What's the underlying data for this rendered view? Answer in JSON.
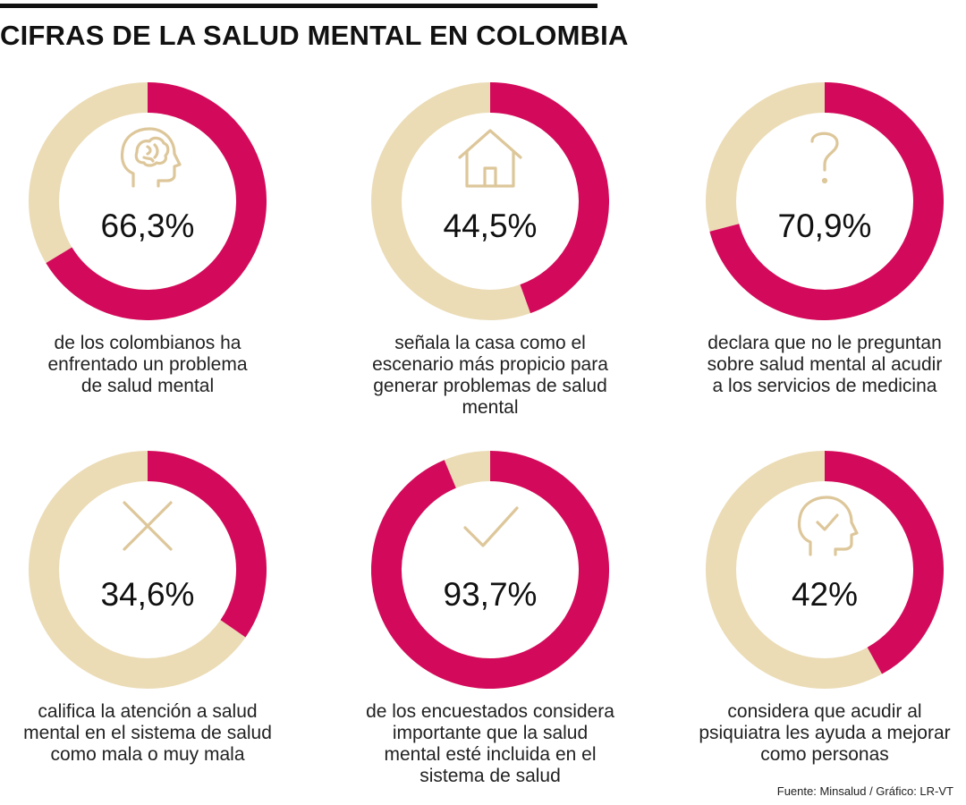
{
  "title": "CIFRAS DE LA SALUD MENTAL EN COLOMBIA",
  "colors": {
    "accent": "#d30a5c",
    "remainder": "#ebdcb6",
    "icon": "#ddc79a"
  },
  "chart_data": [
    {
      "type": "pie",
      "value": 66.3,
      "label": "66,3%",
      "icon": "head-brain-icon",
      "description": [
        "de los colombianos ha",
        "enfrentado un problema",
        "de salud mental"
      ]
    },
    {
      "type": "pie",
      "value": 44.5,
      "label": "44,5%",
      "icon": "house-icon",
      "description": [
        "señala la casa como el",
        "escenario más propicio para",
        "generar problemas de salud",
        "mental"
      ]
    },
    {
      "type": "pie",
      "value": 70.9,
      "label": "70,9%",
      "icon": "question-mark-icon",
      "description": [
        "declara que no le preguntan",
        "sobre salud mental al acudir",
        "a los servicios de medicina"
      ]
    },
    {
      "type": "pie",
      "value": 34.6,
      "label": "34,6%",
      "icon": "x-mark-icon",
      "description": [
        "califica la atención a salud",
        "mental en el sistema de salud",
        "como mala o muy mala"
      ]
    },
    {
      "type": "pie",
      "value": 93.7,
      "label": "93,7%",
      "icon": "check-mark-icon",
      "description": [
        "de los encuestados considera",
        "importante que la salud",
        "mental esté incluida en el",
        "sistema de salud"
      ]
    },
    {
      "type": "pie",
      "value": 42,
      "label": "42%",
      "icon": "head-check-icon",
      "description": [
        "considera que acudir al",
        "psiquiatra les ayuda a mejorar",
        "como personas"
      ]
    }
  ],
  "source": "Fuente: Minsalud / Gráfico: LR-VT"
}
